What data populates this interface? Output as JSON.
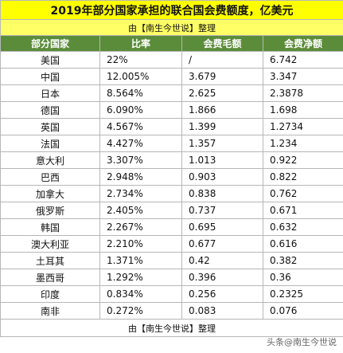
{
  "header": {
    "title": "2019年部分国家承担的联合国会费额度，亿美元",
    "subtitle": "由【南生今世说】整理"
  },
  "table": {
    "columns": [
      "部分国家",
      "比率",
      "会费毛额",
      "会费净额"
    ],
    "rows": [
      [
        "美国",
        "22%",
        "/",
        "6.742"
      ],
      [
        "中国",
        "12.005%",
        "3.679",
        "3.347"
      ],
      [
        "日本",
        "8.564%",
        "2.625",
        "2.3878"
      ],
      [
        "德国",
        "6.090%",
        "1.866",
        "1.698"
      ],
      [
        "英国",
        "4.567%",
        "1.399",
        "1.2734"
      ],
      [
        "法国",
        "4.427%",
        "1.357",
        "1.234"
      ],
      [
        "意大利",
        "3.307%",
        "1.013",
        "0.922"
      ],
      [
        "巴西",
        "2.948%",
        "0.903",
        "0.822"
      ],
      [
        "加拿大",
        "2.734%",
        "0.838",
        "0.762"
      ],
      [
        "俄罗斯",
        "2.405%",
        "0.737",
        "0.671"
      ],
      [
        "韩国",
        "2.267%",
        "0.695",
        "0.632"
      ],
      [
        "澳大利亚",
        "2.210%",
        "0.677",
        "0.616"
      ],
      [
        "土耳其",
        "1.371%",
        "0.42",
        "0.382"
      ],
      [
        "墨西哥",
        "1.292%",
        "0.396",
        "0.36"
      ],
      [
        "印度",
        "0.834%",
        "0.256",
        "0.2325"
      ],
      [
        "南非",
        "0.272%",
        "0.083",
        "0.076"
      ]
    ]
  },
  "footer": {
    "note": "由【南生今世说】整理",
    "watermark": "头条@南生今世说"
  }
}
